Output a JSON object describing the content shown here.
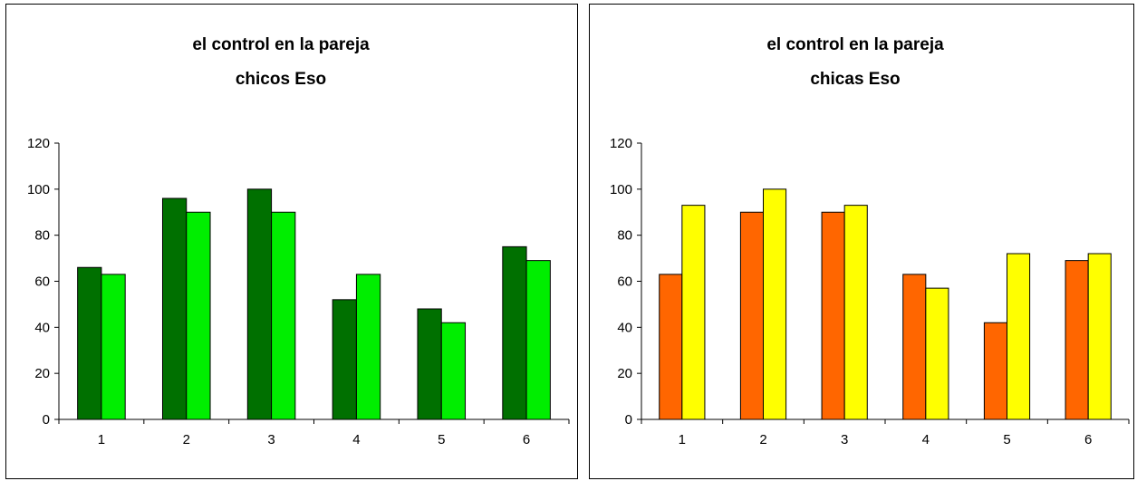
{
  "chart_data": [
    {
      "type": "bar",
      "title": [
        "el control en la pareja",
        "chicos Eso"
      ],
      "categories": [
        "1",
        "2",
        "3",
        "4",
        "5",
        "6"
      ],
      "ylim": [
        0,
        120
      ],
      "yticks": [
        0,
        20,
        40,
        60,
        80,
        100,
        120
      ],
      "grid": false,
      "legend": "none",
      "series": [
        {
          "values": [
            66,
            96,
            100,
            52,
            48,
            75
          ],
          "color": "#007000"
        },
        {
          "values": [
            63,
            90,
            90,
            63,
            42,
            69
          ],
          "color": "#00ee00"
        }
      ]
    },
    {
      "type": "bar",
      "title": [
        "el control en la pareja",
        "chicas Eso"
      ],
      "categories": [
        "1",
        "2",
        "3",
        "4",
        "5",
        "6"
      ],
      "ylim": [
        0,
        120
      ],
      "yticks": [
        0,
        20,
        40,
        60,
        80,
        100,
        120
      ],
      "grid": false,
      "legend": "none",
      "series": [
        {
          "values": [
            63,
            90,
            90,
            63,
            42,
            69
          ],
          "color": "#ff6600"
        },
        {
          "values": [
            93,
            100,
            93,
            57,
            72,
            72
          ],
          "color": "#ffff00"
        }
      ]
    }
  ]
}
